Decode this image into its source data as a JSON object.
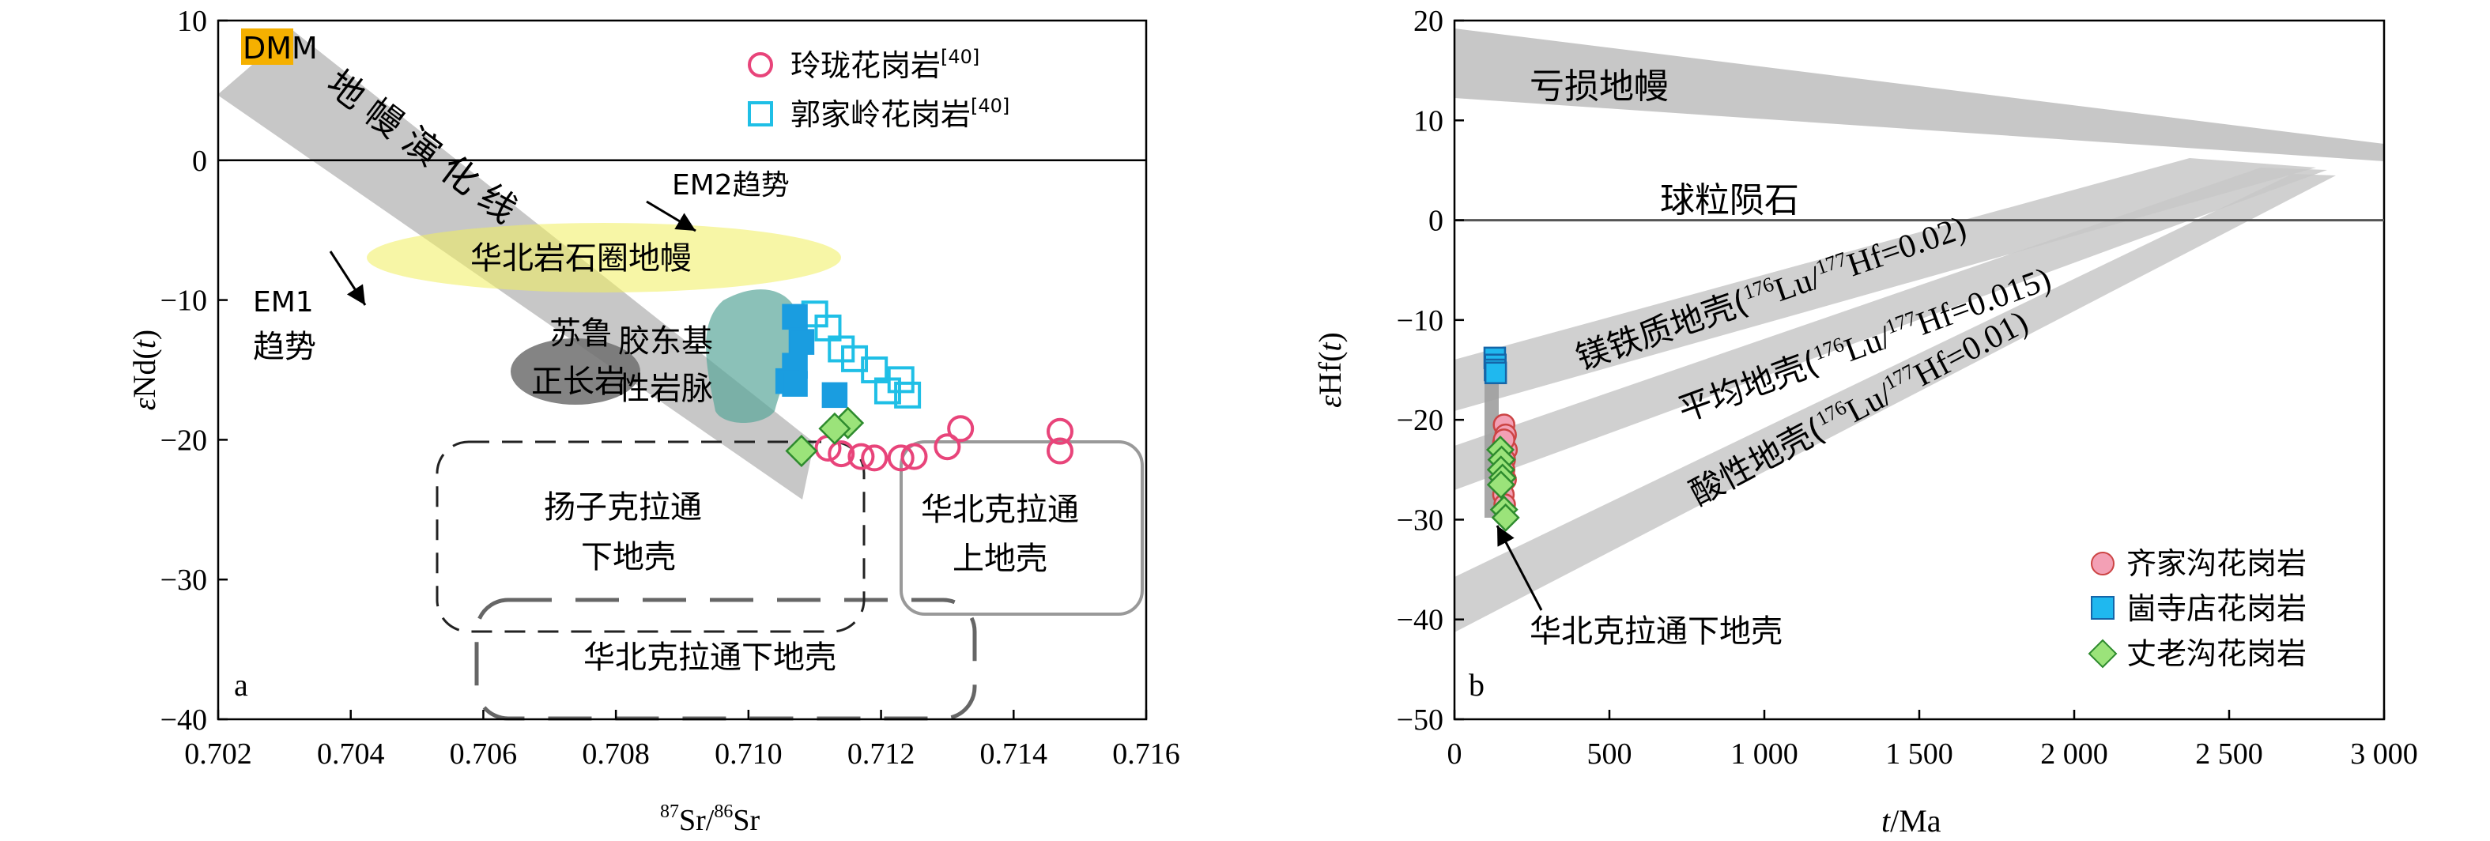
{
  "chart_data": [
    {
      "id": "a",
      "type": "scatter",
      "panel_label": "a",
      "xlabel_sup1": "87",
      "xlabel_mid": "Sr/",
      "xlabel_sup2": "86",
      "xlabel_end": "Sr",
      "ylabel_pre": "ε",
      "ylabel_main": "Nd(",
      "ylabel_var": "t",
      "ylabel_post": ")",
      "xlim": [
        0.702,
        0.716
      ],
      "ylim": [
        -40,
        10
      ],
      "x_ticks": [
        "0.702",
        "0.704",
        "0.706",
        "0.708",
        "0.710",
        "0.712",
        "0.714",
        "0.716"
      ],
      "x_tick_values": [
        0.702,
        0.704,
        0.706,
        0.708,
        0.71,
        0.712,
        0.714,
        0.716
      ],
      "y_ticks": [
        "10",
        "0",
        "−10",
        "−20",
        "−30",
        "−40"
      ],
      "y_tick_values": [
        10,
        0,
        -10,
        -20,
        -30,
        -40
      ],
      "hline": 0,
      "legend": [
        {
          "name": "玲珑花岗岩",
          "ref": "[40]",
          "marker": "circle",
          "color": "#e8447a",
          "fill": "none"
        },
        {
          "name": "郭家岭花岗岩",
          "ref": "[40]",
          "marker": "square",
          "color": "#1fbfe6",
          "fill": "none"
        }
      ],
      "legend_placement": "top-right",
      "fields": {
        "mantle_array": "地幔演化线",
        "dmm": "DMM",
        "ncc_lithospheric_mantle": "华北岩石圈地幔",
        "sulu_line1": "苏鲁",
        "sulu_line2": "正长岩",
        "jiaodong_line1": "胶东基",
        "jiaodong_line2": "性岩脉",
        "yangtze_line1": "扬子克拉通",
        "yangtze_line2": "下地壳",
        "ncc_upper_line1": "华北克拉通",
        "ncc_upper_line2": "上地壳",
        "ncc_lower": "华北克拉通下地壳",
        "em2": "EM2趋势",
        "em1_line1": "EM1",
        "em1_line2": "趋势"
      },
      "series": [
        {
          "name": "玲珑花岗岩",
          "marker": "circle",
          "color": "#e8447a",
          "fill": "none",
          "x": [
            0.7112,
            0.7114,
            0.7117,
            0.7119,
            0.7123,
            0.7125,
            0.713,
            0.7132,
            0.7147,
            0.7147
          ],
          "y": [
            -20.6,
            -21.0,
            -21.2,
            -21.3,
            -21.3,
            -21.2,
            -20.5,
            -19.2,
            -19.4,
            -20.8
          ]
        },
        {
          "name": "郭家岭花岗岩",
          "marker": "square",
          "color": "#1fbfe6",
          "fill": "none",
          "x": [
            0.711,
            0.7112,
            0.7114,
            0.7116,
            0.7119,
            0.7121,
            0.7123,
            0.7124
          ],
          "y": [
            -11.0,
            -12.0,
            -13.5,
            -14.2,
            -15.0,
            -16.5,
            -15.7,
            -16.8
          ]
        },
        {
          "name": "崮寺店花岗岩",
          "marker": "square",
          "color": "#1a9de0",
          "fill": "#1a9de0",
          "x": [
            0.7107,
            0.7108,
            0.7107,
            0.7106,
            0.7107,
            0.7113
          ],
          "y": [
            -11.2,
            -13.0,
            -14.7,
            -15.8,
            -16.0,
            -16.8
          ]
        },
        {
          "name": "丈老沟花岗岩",
          "marker": "diamond",
          "color": "#2e8b2e",
          "fill": "#9be37a",
          "x": [
            0.7115,
            0.7113,
            0.7108
          ],
          "y": [
            -18.8,
            -19.2,
            -20.8
          ]
        }
      ]
    },
    {
      "id": "b",
      "type": "scatter",
      "panel_label": "b",
      "xlabel_var": "t",
      "xlabel_rest": "/Ma",
      "ylabel_pre": "ε",
      "ylabel_main": "Hf(",
      "ylabel_var": "t",
      "ylabel_post": ")",
      "xlim": [
        0,
        3000
      ],
      "ylim": [
        -50,
        20
      ],
      "x_ticks": [
        "0",
        "500",
        "1 000",
        "1 500",
        "2 000",
        "2 500",
        "3 000"
      ],
      "x_tick_values": [
        0,
        500,
        1000,
        1500,
        2000,
        2500,
        3000
      ],
      "y_ticks": [
        "20",
        "10",
        "0",
        "−10",
        "−20",
        "−30",
        "−40",
        "−50"
      ],
      "y_tick_values": [
        20,
        10,
        0,
        -10,
        -20,
        -30,
        -40,
        -50
      ],
      "hline": 0,
      "legend": [
        {
          "name": "齐家沟花岗岩",
          "marker": "circle",
          "color": "#c44",
          "fill": "#f3a0b5"
        },
        {
          "name": "崮寺店花岗岩",
          "marker": "square",
          "color": "#1565a8",
          "fill": "#1fb8ef"
        },
        {
          "name": "丈老沟花岗岩",
          "marker": "diamond",
          "color": "#2e8b2e",
          "fill": "#9be37a"
        }
      ],
      "legend_placement": "bottom-right",
      "labels": {
        "depleted_mantle": "亏损地幔",
        "chondrite": "球粒陨石",
        "mafic_crust_pre": "镁铁质地壳(",
        "mafic_crust_sup1": "176",
        "mafic_crust_mid": "Lu/",
        "mafic_crust_sup2": "177",
        "mafic_crust_post": "Hf=0.02)",
        "avg_crust_pre": "平均地壳(",
        "avg_crust_sup1": "176",
        "avg_crust_mid": "Lu/",
        "avg_crust_sup2": "177",
        "avg_crust_post": "Hf=0.015)",
        "felsic_crust_pre": "酸性地壳(",
        "felsic_crust_sup1": "176",
        "felsic_crust_mid": "Lu/",
        "felsic_crust_sup2": "177",
        "felsic_crust_post": "Hf=0.01)",
        "ncc_lower": "华北克拉通下地壳"
      },
      "series": [
        {
          "name": "齐家沟花岗岩",
          "marker": "circle",
          "color": "#c44",
          "fill": "#f3a0b5",
          "x": [
            160,
            165,
            158,
            168,
            162,
            160,
            165,
            158,
            162,
            160
          ],
          "y": [
            -20.5,
            -21.5,
            -22.3,
            -23.0,
            -24.0,
            -25.0,
            -26.0,
            -27.5,
            -28.5,
            -22.0
          ]
        },
        {
          "name": "崮寺店花岗岩",
          "marker": "square",
          "color": "#1565a8",
          "fill": "#1fb8ef",
          "x": [
            130,
            132,
            131,
            133
          ],
          "y": [
            -13.8,
            -14.5,
            -15.0,
            -15.3
          ]
        },
        {
          "name": "丈老沟花岗岩",
          "marker": "diamond",
          "color": "#2e8b2e",
          "fill": "#9be37a",
          "x": [
            148,
            152,
            150,
            155,
            160,
            165,
            150
          ],
          "y": [
            -23.0,
            -24.0,
            -25.0,
            -25.8,
            -29.0,
            -29.8,
            -26.5
          ]
        }
      ]
    }
  ]
}
